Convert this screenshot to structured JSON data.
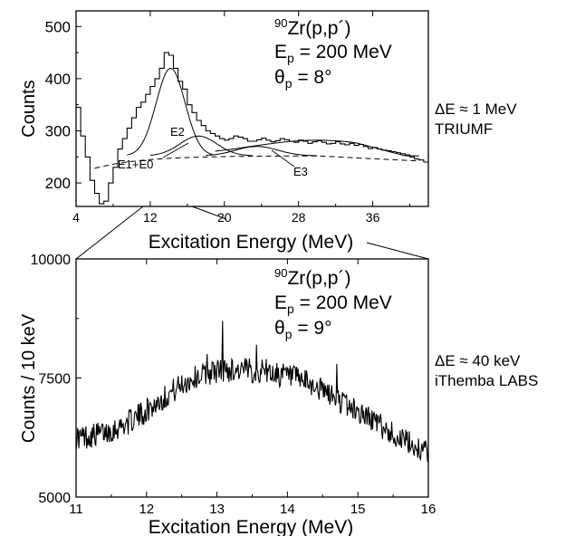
{
  "chart_data": [
    {
      "type": "line",
      "xlabel": "Excitation Energy (MeV)",
      "ylabel": "Counts",
      "xlim": [
        4,
        42
      ],
      "ylim": [
        155,
        530
      ],
      "xticks": [
        4,
        12,
        20,
        28,
        36
      ],
      "yticks": [
        200,
        300,
        400,
        500
      ],
      "grid": false,
      "legend": "none",
      "annotation": {
        "reaction": {
          "prefix": "90",
          "text": "Zr(p,p´)"
        },
        "beam": {
          "symbol": "E",
          "sub": "p",
          "text": " = 200 MeV"
        },
        "angle": {
          "symbol": "θ",
          "sub": "p",
          "text": " = 8°"
        }
      },
      "side_note": [
        "ΔE ≈ 1 MeV",
        "TRIUMF"
      ],
      "series": [
        {
          "label": "data",
          "style": "step",
          "x": [
            4.0,
            4.5,
            5.0,
            5.5,
            6.0,
            6.5,
            7.0,
            7.5,
            8.0,
            8.5,
            9.0,
            9.5,
            10.0,
            10.5,
            11.0,
            11.5,
            12.0,
            12.5,
            13.0,
            13.5,
            14.0,
            14.5,
            15.0,
            15.5,
            16.0,
            16.5,
            17.0,
            17.5,
            18.0,
            18.5,
            19.0,
            19.5,
            20.0,
            20.5,
            21.0,
            21.5,
            22.0,
            22.5,
            23.0,
            23.5,
            24.0,
            24.5,
            25.0,
            25.5,
            26.0,
            26.5,
            27.0,
            27.5,
            28.0,
            28.5,
            29.0,
            29.5,
            30.0,
            30.5,
            31.0,
            31.5,
            32.0,
            32.5,
            33.0,
            33.5,
            34.0,
            34.5,
            35.0,
            35.5,
            36.0,
            36.5,
            37.0,
            37.5,
            38.0,
            38.5,
            39.0,
            39.5,
            40.0,
            40.5,
            41.0,
            41.5
          ],
          "y": [
            345,
            290,
            250,
            205,
            180,
            160,
            165,
            200,
            230,
            265,
            285,
            305,
            325,
            345,
            355,
            370,
            385,
            400,
            420,
            450,
            445,
            420,
            395,
            380,
            350,
            335,
            320,
            310,
            300,
            295,
            290,
            285,
            282,
            285,
            290,
            288,
            285,
            280,
            280,
            283,
            286,
            282,
            279,
            281,
            285,
            283,
            280,
            278,
            282,
            280,
            276,
            279,
            281,
            278,
            275,
            276,
            279,
            275,
            273,
            276,
            272,
            274,
            270,
            266,
            268,
            265,
            263,
            262,
            260,
            258,
            256,
            254,
            250,
            246,
            244,
            240
          ]
        },
        {
          "label": "E2",
          "style": "solid"
        },
        {
          "label": "E1+E0",
          "style": "solid"
        },
        {
          "label": "E3",
          "style": "solid"
        },
        {
          "label": "background",
          "style": "dashed"
        }
      ]
    },
    {
      "type": "line",
      "xlabel": "Excitation Energy (MeV)",
      "ylabel": "Counts / 10 keV",
      "xlim": [
        11,
        16
      ],
      "ylim": [
        5000,
        10000
      ],
      "xticks": [
        11,
        12,
        13,
        14,
        15,
        16
      ],
      "yticks": [
        5000,
        7500,
        10000
      ],
      "grid": false,
      "legend": "none",
      "annotation": {
        "reaction": {
          "prefix": "90",
          "text": "Zr(p,p´)"
        },
        "beam": {
          "symbol": "E",
          "sub": "p",
          "text": " = 200 MeV"
        },
        "angle": {
          "symbol": "θ",
          "sub": "p",
          "text": " = 9°"
        }
      },
      "side_note": [
        "ΔE ≈ 40 keV",
        "iThemba LABS"
      ],
      "series": [
        {
          "label": "data",
          "style": "line",
          "x_start": 11.0,
          "x_step": 0.01
        }
      ]
    }
  ]
}
